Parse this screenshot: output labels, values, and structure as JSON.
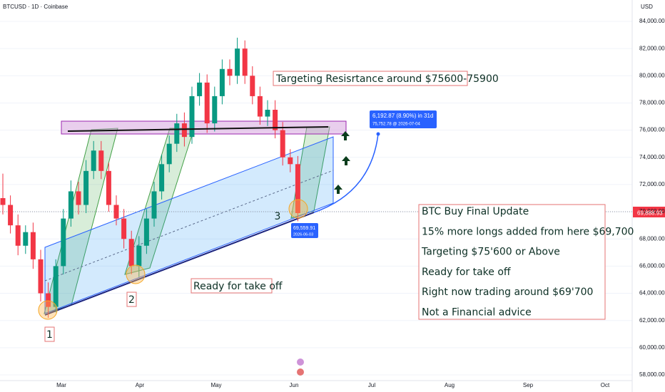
{
  "header": {
    "symbol": "BTCUSD · 1D · Coinbase",
    "currency": "USD"
  },
  "chart_data": {
    "type": "candlestick",
    "open": [
      71000,
      70500,
      69000,
      67500,
      68500,
      66500,
      64000,
      63000,
      66000,
      69500,
      71500,
      70500,
      73000,
      74500,
      73000,
      70500,
      69500,
      68000,
      66000,
      67500,
      69500,
      71500,
      73500,
      75000,
      76500,
      75500,
      78500,
      79500,
      76500,
      78500,
      80500,
      80000,
      82000,
      80000,
      78500,
      77000,
      77500,
      76000,
      74000,
      73500
    ],
    "high": [
      72800,
      71200,
      69800,
      69000,
      69200,
      67200,
      64800,
      66500,
      70200,
      72300,
      72200,
      73800,
      75200,
      75200,
      73600,
      71200,
      70200,
      68600,
      68200,
      70200,
      72200,
      74200,
      75600,
      77200,
      77300,
      79200,
      80200,
      80100,
      79200,
      81200,
      81200,
      82800,
      82600,
      80700,
      79200,
      78200,
      78200,
      76600,
      74600,
      74100
    ],
    "low": [
      69800,
      68400,
      66800,
      66900,
      65800,
      63400,
      62200,
      62600,
      65400,
      68900,
      69800,
      69900,
      72400,
      72400,
      70000,
      69000,
      67300,
      65400,
      65200,
      66900,
      68900,
      70900,
      72900,
      74400,
      74800,
      75000,
      77800,
      75800,
      75900,
      77900,
      79300,
      79400,
      79400,
      77900,
      76400,
      76300,
      75400,
      73400,
      72900,
      69300
    ],
    "close": [
      70500,
      69000,
      67500,
      68500,
      66500,
      64000,
      63000,
      66000,
      69500,
      71500,
      70500,
      73000,
      74500,
      73000,
      70500,
      69500,
      68000,
      66000,
      67500,
      69500,
      71500,
      73500,
      75000,
      76500,
      75500,
      78500,
      79500,
      76500,
      78500,
      80500,
      80000,
      82000,
      80000,
      78500,
      77000,
      77500,
      76000,
      74000,
      73500,
      69900
    ],
    "up_color": "#089981",
    "down_color": "#f23645",
    "ylim": [
      58000,
      84000
    ],
    "yticks": [
      {
        "value": 58000,
        "label": "58,000.00"
      },
      {
        "value": 60000,
        "label": "60,000.00"
      },
      {
        "value": 62000,
        "label": "62,000.00"
      },
      {
        "value": 64000,
        "label": "64,000.00"
      },
      {
        "value": 66000,
        "label": "66,000.00"
      },
      {
        "value": 68000,
        "label": "68,000.00"
      },
      {
        "value": 70000,
        "label": "70,000.00"
      },
      {
        "value": 72000,
        "label": "72,000.00"
      },
      {
        "value": 74000,
        "label": "74,000.00"
      },
      {
        "value": 76000,
        "label": "76,000.00"
      },
      {
        "value": 78000,
        "label": "78,000.00"
      },
      {
        "value": 80000,
        "label": "80,000.00"
      },
      {
        "value": 82000,
        "label": "82,000.00"
      },
      {
        "value": 84000,
        "label": "84,000.00"
      }
    ],
    "last_price": {
      "value": 69888.93,
      "label": "69,888.93"
    },
    "months": [
      "Mar",
      "Apr",
      "May",
      "Jun",
      "Jul",
      "Aug",
      "Sep",
      "Oct"
    ]
  },
  "annotations": {
    "target": "Targeting Resisrtance around $75600-75900",
    "takeoff": "Ready for take off",
    "points": [
      "1",
      "2",
      "3"
    ],
    "measure_change": "6,192.87 (8.90%) in 31d",
    "measure_target": "75,752.78 @ 2026-07-04",
    "entry_price": "69,559.91",
    "entry_date": "2026-06-03"
  },
  "update_box": {
    "lines": [
      "BTC Buy Final Update",
      "15%  more longs added from here $69,700",
      "Targeting $75'600 or Above",
      "Ready for take off",
      "Right now trading around $69'700",
      "Not a Financial advice"
    ]
  }
}
